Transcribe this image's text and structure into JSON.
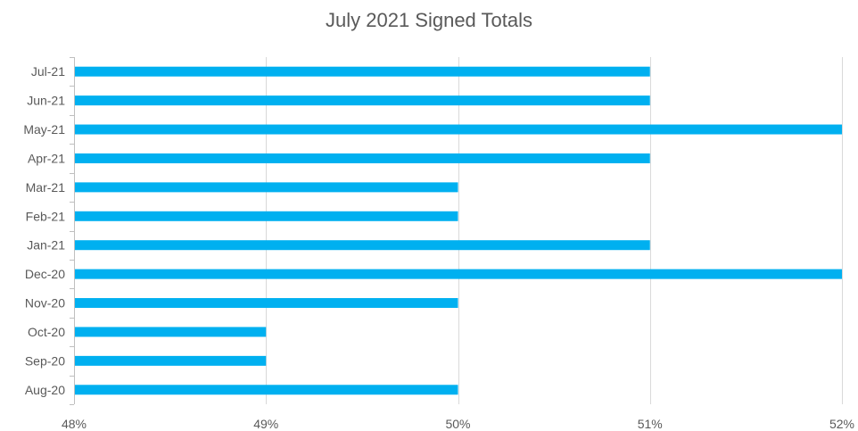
{
  "chart_data": {
    "type": "bar",
    "orientation": "horizontal",
    "title": "July 2021 Signed Totals",
    "xlabel": "",
    "ylabel": "",
    "categories": [
      "Jul-21",
      "Jun-21",
      "May-21",
      "Apr-21",
      "Mar-21",
      "Feb-21",
      "Jan-21",
      "Dec-20",
      "Nov-20",
      "Oct-20",
      "Sep-20",
      "Aug-20"
    ],
    "values": [
      51,
      51,
      52,
      51,
      50,
      50,
      51,
      52,
      50,
      49,
      49,
      50
    ],
    "xlim": [
      48,
      52
    ],
    "xticks": [
      48,
      49,
      50,
      51,
      52
    ],
    "xtick_labels": [
      "48%",
      "49%",
      "50%",
      "51%",
      "52%"
    ],
    "bar_color": "#00b0f0",
    "grid": true,
    "legend": "none"
  }
}
